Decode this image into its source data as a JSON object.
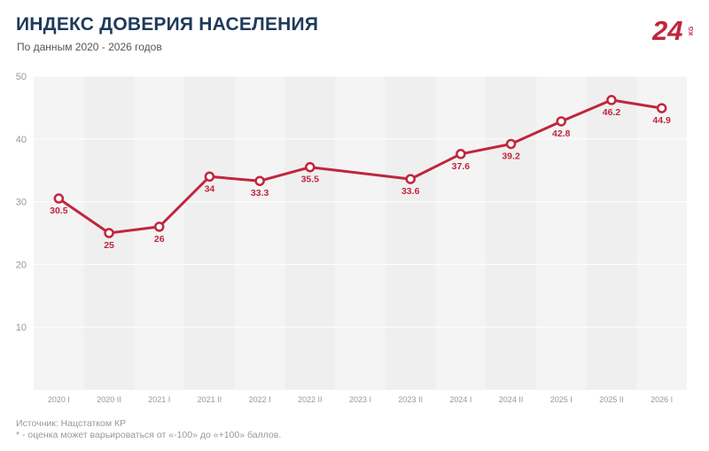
{
  "header": {
    "title": "ИНДЕКС ДОВЕРИЯ НАСЕЛЕНИЯ",
    "subtitle": "По данным 2020 - 2026 годов",
    "logo_text": "24 KG"
  },
  "footer": {
    "source": "Источник: Нацстатком КР",
    "note": "* - оценка может варьироваться от «-100» до «+100» баллов."
  },
  "colors": {
    "line": "#c0263d",
    "label": "#c0263d",
    "title": "#1f3a5a",
    "logo": "#c0263d"
  },
  "chart_data": {
    "type": "line",
    "categories": [
      "2020 I",
      "2020 II",
      "2021 I",
      "2021 II",
      "2022 I",
      "2022 II",
      "2023 I",
      "2023 II",
      "2024 I",
      "2024 II",
      "2025 I",
      "2025 II",
      "2026 I"
    ],
    "series": [
      {
        "values": [
          30.5,
          25,
          26,
          34,
          33.3,
          35.5,
          null,
          33.6,
          37.6,
          39.2,
          42.8,
          46.2,
          44.9
        ],
        "labels": [
          "30.5",
          "25",
          "26",
          "34",
          "33.3",
          "35.5",
          "",
          "33.6",
          "37.6",
          "39.2",
          "42.8",
          "46.2",
          "44.9"
        ]
      }
    ],
    "yticks": [
      10,
      20,
      30,
      40,
      50
    ],
    "ylim": [
      0,
      50
    ],
    "grid": true,
    "xlabel": "",
    "ylabel": ""
  }
}
